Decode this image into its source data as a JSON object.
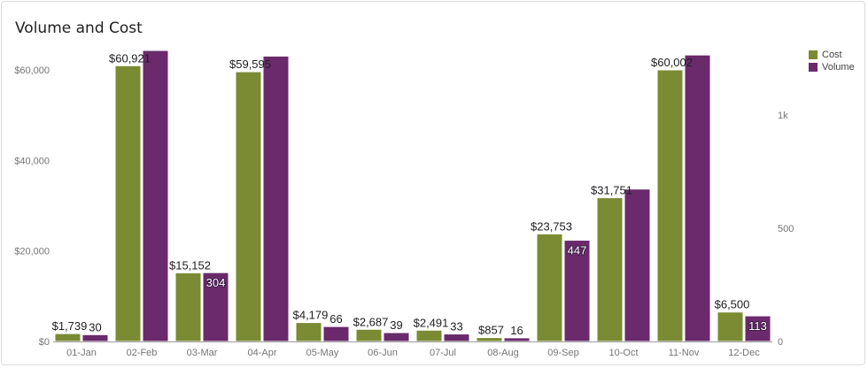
{
  "title": "Volume and Cost",
  "colors": {
    "cost": "#7a8b33",
    "volume": "#6a2a6b"
  },
  "legend": [
    {
      "label": "Cost",
      "color": "#7a8b33"
    },
    {
      "label": "Volume",
      "color": "#6a2a6b"
    }
  ],
  "chart_data": {
    "type": "bar",
    "title": "Volume and Cost",
    "categories": [
      "01-Jan",
      "02-Feb",
      "03-Mar",
      "04-Apr",
      "05-May",
      "06-Jun",
      "07-Jul",
      "08-Aug",
      "09-Sep",
      "10-Oct",
      "11-Nov",
      "12-Dec"
    ],
    "series": [
      {
        "name": "Cost",
        "axis": "left",
        "color": "#7a8b33",
        "values": [
          1739,
          60921,
          15152,
          59595,
          4179,
          2687,
          2491,
          857,
          23753,
          31751,
          60002,
          6500
        ],
        "labels": [
          "$1,739",
          "$60,921",
          "$15,152",
          "$59,595",
          "$4,179",
          "$2,687",
          "$2,491",
          "$857",
          "$23,753",
          "$31,751",
          "$60,002",
          "$6,500"
        ]
      },
      {
        "name": "Volume",
        "axis": "right",
        "color": "#6a2a6b",
        "values": [
          30,
          1285,
          304,
          1260,
          66,
          39,
          33,
          16,
          447,
          673,
          1265,
          113
        ],
        "labels": [
          "30",
          "",
          "304",
          "",
          "66",
          "39",
          "33",
          "16",
          "447",
          "",
          "",
          "113"
        ]
      }
    ],
    "y_left": {
      "ticks": [
        0,
        20000,
        40000,
        60000
      ],
      "tick_labels": [
        "$0",
        "$20,000",
        "$40,000",
        "$60,000"
      ],
      "max": 60000
    },
    "y_right": {
      "ticks": [
        0,
        500,
        1000
      ],
      "tick_labels": [
        "0",
        "500",
        "1k"
      ],
      "max": 1000
    },
    "grid": false,
    "legend_position": "top-right"
  }
}
